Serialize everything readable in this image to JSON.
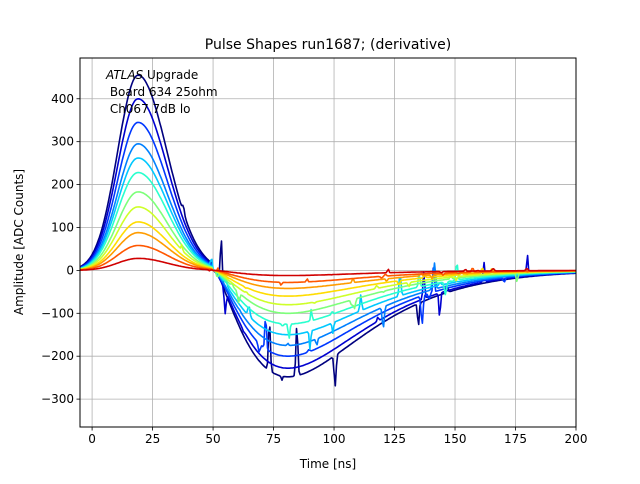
{
  "chart_data": {
    "type": "line",
    "title": "Pulse Shapes run1687; (derivative)",
    "xlabel": "Time [ns]",
    "ylabel": "Amplitude [ADC Counts]",
    "xlim": [
      -5,
      200
    ],
    "ylim": [
      -365,
      495
    ],
    "xticks": [
      0,
      25,
      50,
      75,
      100,
      125,
      150,
      175,
      200
    ],
    "yticks": [
      -300,
      -200,
      -100,
      0,
      100,
      200,
      300,
      400
    ],
    "grid": true,
    "annotation": {
      "line1_italic": "ATLAS",
      "line1_rest": " Upgrade",
      "line2": " Board 634 25ohm",
      "line3": " Ch067 7dB lo"
    },
    "series": [
      {
        "color": "#00007f",
        "peak": 455,
        "trough": -248
      },
      {
        "color": "#0000d0",
        "peak": 400,
        "trough": -228
      },
      {
        "color": "#0038ff",
        "peak": 345,
        "trough": -200
      },
      {
        "color": "#0080ff",
        "peak": 295,
        "trough": -175
      },
      {
        "color": "#00c8ff",
        "peak": 262,
        "trough": -150
      },
      {
        "color": "#29ffce",
        "peak": 228,
        "trough": -125
      },
      {
        "color": "#7dff7a",
        "peak": 183,
        "trough": -100
      },
      {
        "color": "#ceff29",
        "peak": 148,
        "trough": -80
      },
      {
        "color": "#ffdc00",
        "peak": 113,
        "trough": -60
      },
      {
        "color": "#ff9c00",
        "peak": 88,
        "trough": -42
      },
      {
        "color": "#ff5700",
        "peak": 58,
        "trough": -28
      },
      {
        "color": "#d00000",
        "peak": 28,
        "trough": -12
      }
    ]
  }
}
